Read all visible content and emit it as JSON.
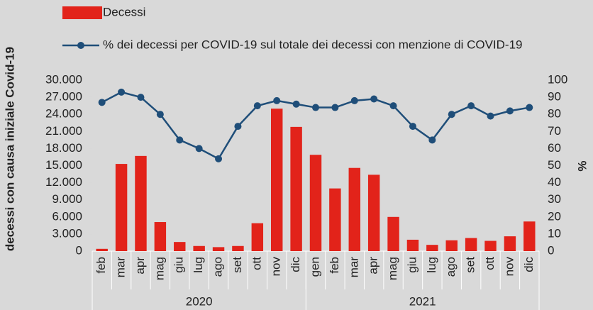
{
  "chart_data": {
    "type": "bar_line",
    "categories": [
      "feb",
      "mar",
      "apr",
      "mag",
      "giu",
      "lug",
      "ago",
      "set",
      "ott",
      "nov",
      "dic",
      "gen",
      "feb",
      "mar",
      "apr",
      "mag",
      "giu",
      "lug",
      "ago",
      "set",
      "ott",
      "nov",
      "dic"
    ],
    "groups": [
      {
        "label": "2020",
        "count": 11
      },
      {
        "label": "2021",
        "count": 12
      }
    ],
    "series": [
      {
        "name": "Decessi",
        "type": "bar",
        "color": "#e2231a",
        "values": [
          400,
          15300,
          16700,
          5100,
          1600,
          900,
          700,
          900,
          4900,
          25000,
          21800,
          16900,
          11000,
          14600,
          13400,
          6000,
          2000,
          1100,
          1900,
          2300,
          1800,
          2600,
          5200
        ]
      },
      {
        "name": "% dei decessi per COVID-19 sul totale dei decessi con menzione di COVID-19",
        "type": "line",
        "axis": "y2",
        "color": "#1f4e79",
        "values": [
          87,
          93,
          90,
          80,
          65,
          60,
          54,
          73,
          85,
          88,
          86,
          84,
          84,
          88,
          89,
          85,
          73,
          65,
          80,
          85,
          79,
          82,
          84
        ]
      }
    ],
    "ylabel": "decessi con causa iniziale Covid-19",
    "y2label": "%",
    "ylim": [
      0,
      30000
    ],
    "yticks": [
      0,
      {
        "value": 3000,
        "label": "3.000"
      },
      {
        "value": 6000,
        "label": "6.000"
      },
      {
        "value": 9000,
        "label": "9.000"
      },
      {
        "value": 12000,
        "label": "12.000"
      },
      {
        "value": 15000,
        "label": "15.000"
      },
      {
        "value": 18000,
        "label": "18.000"
      },
      {
        "value": 21000,
        "label": "21.000"
      },
      {
        "value": 24000,
        "label": "24.000"
      },
      {
        "value": 27000,
        "label": "27.000"
      },
      {
        "value": 30000,
        "label": "30.000"
      }
    ],
    "y2lim": [
      0,
      100
    ],
    "y2ticks": [
      0,
      10,
      20,
      30,
      40,
      50,
      60,
      70,
      80,
      90,
      100
    ],
    "grid": false
  }
}
